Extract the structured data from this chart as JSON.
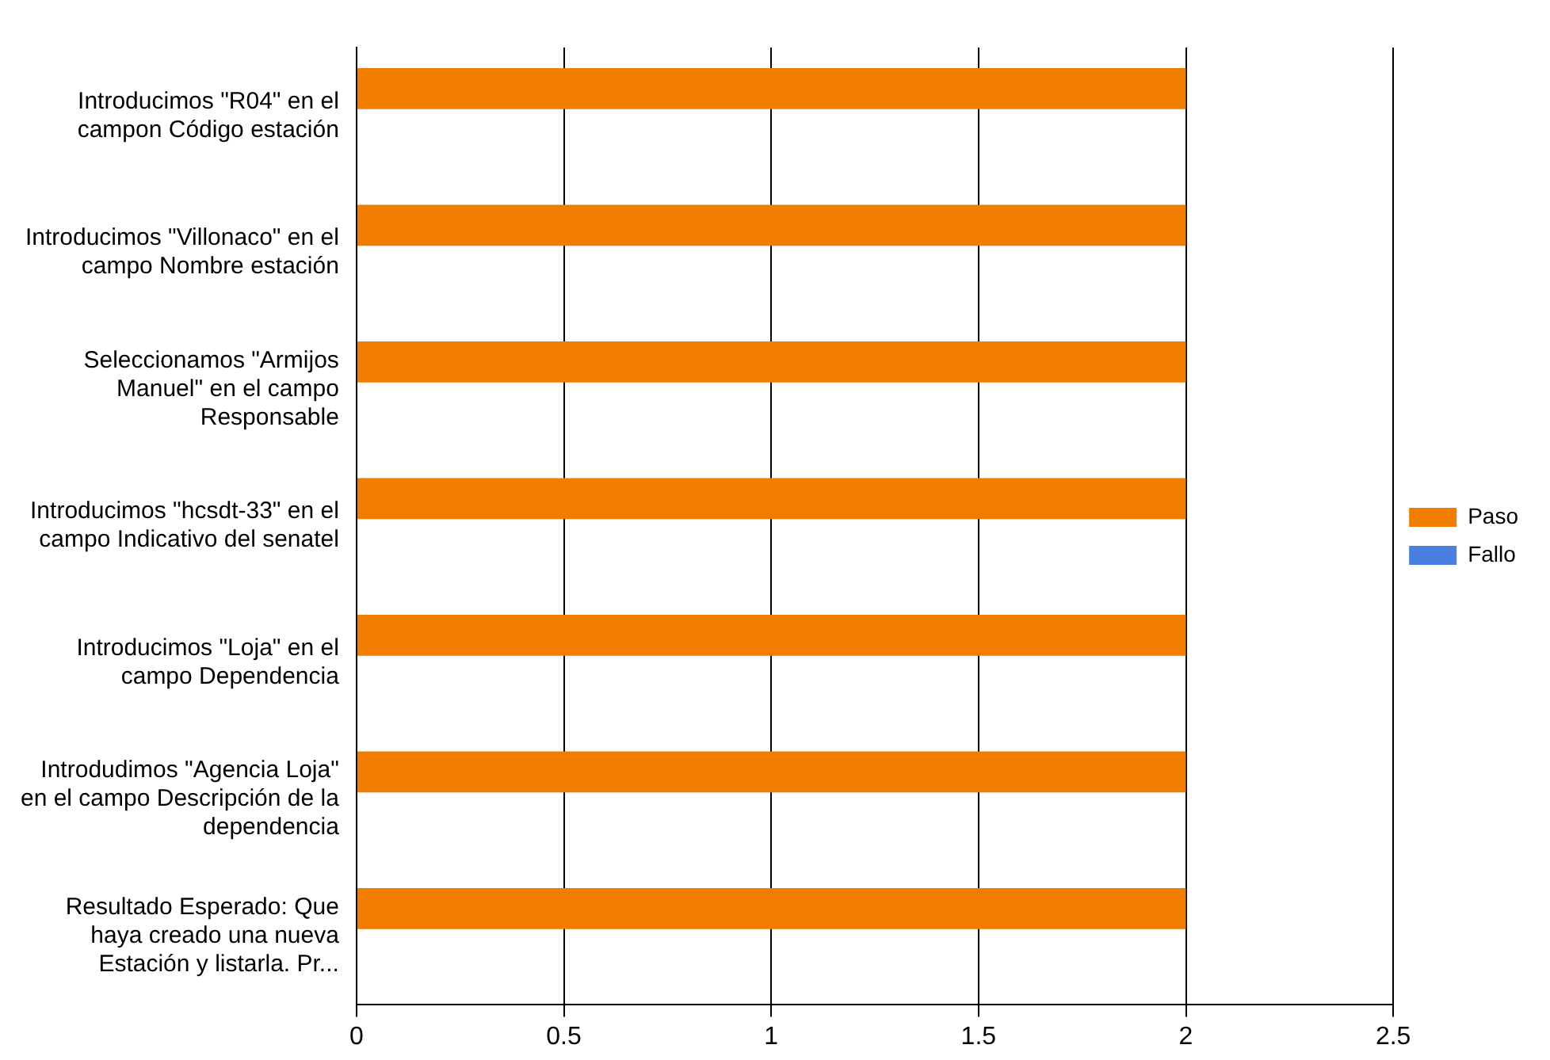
{
  "chart_data": {
    "type": "bar",
    "orientation": "horizontal",
    "categories": [
      "Introducimos \"R04\" en el campon Código estación",
      "Introducimos \"Villonaco\" en el campo Nombre estación",
      "Seleccionamos \"Armijos Manuel\" en el campo Responsable",
      "Introducimos \"hcsdt-33\" en el campo Indicativo del senatel",
      "Introducimos \"Loja\" en el campo Dependencia",
      "Introdudimos \"Agencia Loja\" en el campo Descripción de la dependencia",
      "Resultado Esperado: Que haya creado una nueva Estación y listarla. Pr..."
    ],
    "series": [
      {
        "name": "Paso",
        "color": "#f07d00",
        "values": [
          2,
          2,
          2,
          2,
          2,
          2,
          2
        ]
      },
      {
        "name": "Fallo",
        "color": "#4a7fe0",
        "values": [
          0,
          0,
          0,
          0,
          0,
          0,
          0
        ]
      }
    ],
    "xlim": [
      0,
      2.5
    ],
    "xticks": [
      0,
      0.5,
      1,
      1.5,
      2,
      2.5
    ],
    "grid": "x",
    "legend": "right"
  }
}
